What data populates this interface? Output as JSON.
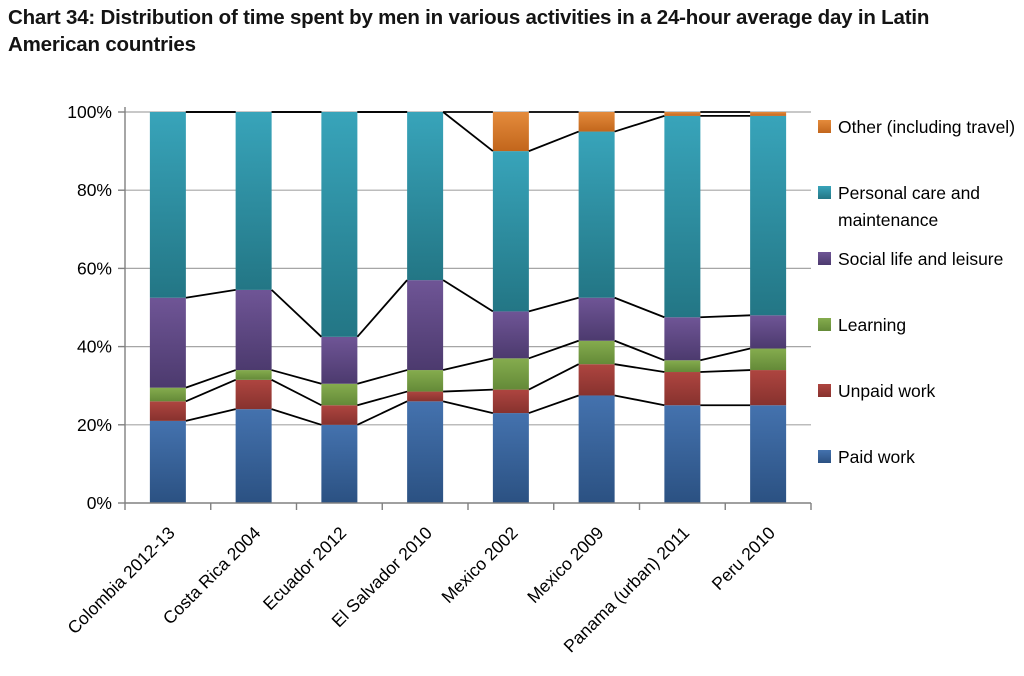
{
  "chart_data": {
    "type": "bar",
    "stacked": true,
    "percent": true,
    "title": "Chart 34: Distribution of time spent by men in various activities in a 24-hour average day in Latin American countries",
    "categories": [
      "Colombia 2012-13",
      "Costa Rica 2004",
      "Ecuador 2012",
      "El Salvador 2010",
      "Mexico 2002",
      "Mexico 2009",
      "Panama (urban) 2011",
      "Peru 2010"
    ],
    "series": [
      {
        "name": "Paid work",
        "slug": "paid-work",
        "color": "#4472AE",
        "color2": "#2B5182",
        "values": [
          21,
          24,
          20,
          26,
          23,
          27.5,
          25,
          25
        ]
      },
      {
        "name": "Unpaid work",
        "slug": "unpaid-work",
        "color": "#AE4540",
        "color2": "#87322E",
        "values": [
          5,
          7.5,
          5,
          2.5,
          6,
          8,
          8.5,
          9
        ]
      },
      {
        "name": "Learning",
        "slug": "learning",
        "color": "#85AC4E",
        "color2": "#648A38",
        "values": [
          3.5,
          2.5,
          5.5,
          5.5,
          8,
          6,
          3,
          5.5
        ]
      },
      {
        "name": "Social life and leisure",
        "slug": "social-life",
        "color": "#6F5596",
        "color2": "#4C3A6E",
        "values": [
          23,
          20.5,
          12,
          23,
          12,
          11,
          11,
          8.5
        ]
      },
      {
        "name": "Personal care and maintenance",
        "slug": "personal-care",
        "color": "#38A4BA",
        "color2": "#237685",
        "values": [
          47.5,
          45.5,
          57.5,
          43,
          41,
          42.5,
          51.5,
          51
        ]
      },
      {
        "name": "Other (including travel)",
        "slug": "other",
        "color": "#E48B3C",
        "color2": "#C2661C",
        "values": [
          0,
          0,
          0,
          0,
          10,
          5,
          1,
          1
        ]
      }
    ],
    "y_tick_labels": [
      "0%",
      "20%",
      "40%",
      "60%",
      "80%",
      "100%"
    ],
    "ylim": [
      0,
      100
    ],
    "y_step": 20,
    "grid": true,
    "series_lines": true,
    "legend_position": "right",
    "colors": {
      "gridline": "#A6A6A6",
      "axis": "#808080",
      "series_line": "#000000",
      "text": "#000000",
      "title": "#141414",
      "background": "#FFFFFF"
    }
  }
}
